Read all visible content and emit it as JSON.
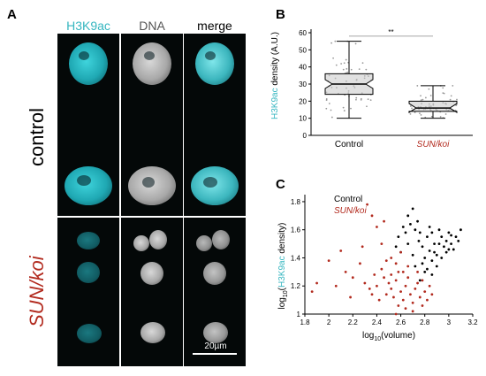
{
  "panels": {
    "a_letter": "A",
    "b_letter": "B",
    "c_letter": "C"
  },
  "panel_a": {
    "col_headers": [
      "H3K9ac",
      "DNA",
      "merge"
    ],
    "row_labels": [
      "control",
      "SUN/koi"
    ],
    "scale_bar": "20µm"
  },
  "colors": {
    "cyan": "#35b6c0",
    "red": "#b22a1e",
    "black": "#000000"
  },
  "chart_data": [
    {
      "type": "box",
      "ylabel_colored": "H3K9ac",
      "ylabel_rest": " density (A.U.)",
      "categories": [
        "Control",
        "SUN/koi"
      ],
      "yticks": [
        0,
        10,
        20,
        30,
        40,
        50,
        60
      ],
      "ylim": [
        0,
        60
      ],
      "boxes": [
        {
          "name": "Control",
          "whisker_low": 10,
          "q1": 24,
          "median": 30,
          "q3": 36,
          "whisker_high": 55
        },
        {
          "name": "SUN/koi",
          "whisker_low": 10,
          "q1": 14,
          "median": 16,
          "q3": 20,
          "whisker_high": 29
        }
      ],
      "significance": "**",
      "grid": false
    },
    {
      "type": "scatter",
      "series": [
        {
          "name": "Control",
          "color": "#000000",
          "points": [
            [
              2.58,
              1.55
            ],
            [
              2.62,
              1.62
            ],
            [
              2.66,
              1.7
            ],
            [
              2.7,
              1.75
            ],
            [
              2.72,
              1.6
            ],
            [
              2.75,
              1.52
            ],
            [
              2.78,
              1.48
            ],
            [
              2.8,
              1.4
            ],
            [
              2.82,
              1.55
            ],
            [
              2.84,
              1.45
            ],
            [
              2.86,
              1.38
            ],
            [
              2.88,
              1.5
            ],
            [
              2.9,
              1.42
            ],
            [
              2.92,
              1.6
            ],
            [
              2.94,
              1.55
            ],
            [
              2.96,
              1.48
            ],
            [
              2.98,
              1.52
            ],
            [
              3.0,
              1.58
            ],
            [
              3.02,
              1.5
            ],
            [
              3.04,
              1.46
            ],
            [
              3.06,
              1.55
            ],
            [
              3.08,
              1.52
            ],
            [
              3.1,
              1.6
            ],
            [
              2.74,
              1.66
            ],
            [
              2.78,
              1.36
            ],
            [
              2.82,
              1.32
            ],
            [
              2.86,
              1.28
            ],
            [
              2.7,
              1.42
            ],
            [
              2.66,
              1.5
            ],
            [
              2.6,
              1.44
            ],
            [
              2.9,
              1.34
            ],
            [
              2.94,
              1.4
            ],
            [
              2.98,
              1.44
            ],
            [
              3.02,
              1.56
            ],
            [
              2.76,
              1.58
            ],
            [
              2.84,
              1.62
            ],
            [
              2.64,
              1.58
            ],
            [
              2.56,
              1.48
            ],
            [
              2.92,
              1.5
            ],
            [
              2.8,
              1.3
            ],
            [
              2.76,
              1.24
            ],
            [
              2.72,
              1.34
            ],
            [
              2.88,
              1.44
            ],
            [
              2.68,
              1.64
            ],
            [
              3.0,
              1.46
            ],
            [
              2.86,
              1.58
            ]
          ]
        },
        {
          "name": "SUN/koi",
          "color": "#b22a1e",
          "points": [
            [
              1.9,
              1.22
            ],
            [
              1.86,
              1.16
            ],
            [
              2.0,
              1.38
            ],
            [
              2.1,
              1.45
            ],
            [
              2.14,
              1.3
            ],
            [
              2.2,
              1.26
            ],
            [
              2.26,
              1.36
            ],
            [
              2.3,
              1.22
            ],
            [
              2.34,
              1.18
            ],
            [
              2.38,
              1.28
            ],
            [
              2.4,
              1.2
            ],
            [
              2.44,
              1.32
            ],
            [
              2.46,
              1.26
            ],
            [
              2.48,
              1.14
            ],
            [
              2.5,
              1.22
            ],
            [
              2.52,
              1.18
            ],
            [
              2.54,
              1.12
            ],
            [
              2.56,
              1.24
            ],
            [
              2.58,
              1.3
            ],
            [
              2.6,
              1.16
            ],
            [
              2.62,
              1.1
            ],
            [
              2.64,
              1.2
            ],
            [
              2.66,
              1.26
            ],
            [
              2.68,
              1.14
            ],
            [
              2.7,
              1.08
            ],
            [
              2.72,
              1.18
            ],
            [
              2.74,
              1.22
            ],
            [
              2.76,
              1.12
            ],
            [
              2.78,
              1.06
            ],
            [
              2.8,
              1.16
            ],
            [
              2.82,
              1.1
            ],
            [
              2.84,
              1.2
            ],
            [
              2.52,
              1.4
            ],
            [
              2.44,
              1.5
            ],
            [
              2.4,
              1.62
            ],
            [
              2.36,
              1.7
            ],
            [
              2.46,
              1.66
            ],
            [
              2.32,
              1.78
            ],
            [
              2.56,
              1.36
            ],
            [
              2.6,
              1.44
            ],
            [
              2.28,
              1.48
            ],
            [
              2.48,
              1.38
            ],
            [
              2.58,
              1.06
            ],
            [
              2.64,
              1.04
            ],
            [
              2.7,
              1.02
            ],
            [
              2.56,
              1.0
            ],
            [
              2.62,
              1.3
            ],
            [
              2.66,
              1.34
            ],
            [
              2.52,
              1.28
            ],
            [
              2.42,
              1.1
            ],
            [
              2.36,
              1.14
            ],
            [
              2.18,
              1.12
            ],
            [
              2.06,
              1.2
            ],
            [
              2.74,
              1.3
            ],
            [
              2.78,
              1.24
            ],
            [
              2.86,
              1.14
            ]
          ]
        }
      ],
      "legend": [
        "Control",
        "SUN/koi"
      ],
      "legend_position": "top-left",
      "xlabel_prefix": "log",
      "xlabel_sub": "10",
      "xlabel_rest": "(volume)",
      "ylabel_prefix": "log",
      "ylabel_sub": "10",
      "ylabel_open": "(",
      "ylabel_colored": "H3K9ac",
      "ylabel_close": " density)",
      "xticks": [
        "1.8",
        "2",
        "2.2",
        "2.4",
        "2.6",
        "2.8",
        "3",
        "3.2"
      ],
      "xlim": [
        1.8,
        3.2
      ],
      "yticks": [
        "1",
        "1.2",
        "1.4",
        "1.6",
        "1.8"
      ],
      "ylim": [
        1.0,
        1.85
      ]
    }
  ]
}
